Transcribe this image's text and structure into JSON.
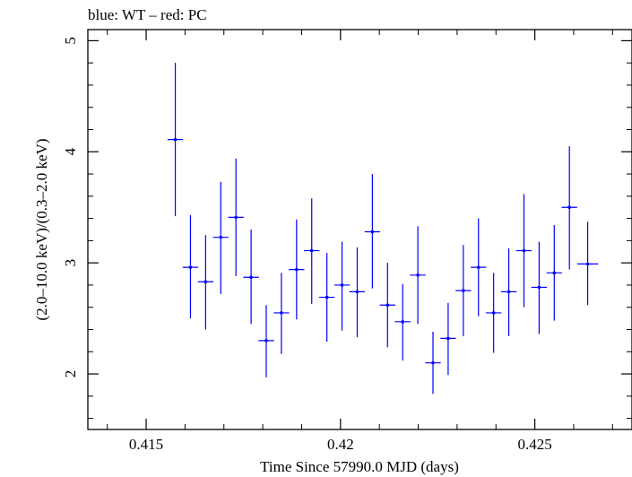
{
  "chart_data": {
    "type": "scatter",
    "title": "blue: WT – red: PC",
    "xlabel": "Time Since 57990.0 MJD (days)",
    "ylabel": "(2.0–10.0 keV)/(0.3–2.0 keV)",
    "xlim": [
      0.4135,
      0.4275
    ],
    "ylim": [
      1.5,
      5.1
    ],
    "x_ticks": [
      {
        "value": 0.415,
        "label": "0.415"
      },
      {
        "value": 0.42,
        "label": "0.42"
      },
      {
        "value": 0.425,
        "label": "0.425"
      }
    ],
    "y_ticks": [
      {
        "value": 2,
        "label": "2"
      },
      {
        "value": 3,
        "label": "3"
      },
      {
        "value": 4,
        "label": "4"
      },
      {
        "value": 5,
        "label": "5"
      }
    ],
    "grid": false,
    "series": [
      {
        "name": "WT",
        "color": "#0000ff",
        "points": [
          {
            "x": 0.41575,
            "xerr": 0.0002,
            "y": 4.11,
            "ylo": 3.42,
            "yhi": 4.8
          },
          {
            "x": 0.41614,
            "xerr": 0.0002,
            "y": 2.96,
            "ylo": 2.5,
            "yhi": 3.43
          },
          {
            "x": 0.41653,
            "xerr": 0.0002,
            "y": 2.83,
            "ylo": 2.4,
            "yhi": 3.25
          },
          {
            "x": 0.41692,
            "xerr": 0.0002,
            "y": 3.23,
            "ylo": 2.72,
            "yhi": 3.73
          },
          {
            "x": 0.41731,
            "xerr": 0.0002,
            "y": 3.41,
            "ylo": 2.88,
            "yhi": 3.94
          },
          {
            "x": 0.4177,
            "xerr": 0.0002,
            "y": 2.87,
            "ylo": 2.45,
            "yhi": 3.3
          },
          {
            "x": 0.41809,
            "xerr": 0.0002,
            "y": 2.3,
            "ylo": 1.97,
            "yhi": 2.62
          },
          {
            "x": 0.41848,
            "xerr": 0.0002,
            "y": 2.55,
            "ylo": 2.18,
            "yhi": 2.91
          },
          {
            "x": 0.41887,
            "xerr": 0.0002,
            "y": 2.94,
            "ylo": 2.49,
            "yhi": 3.39
          },
          {
            "x": 0.41926,
            "xerr": 0.0002,
            "y": 3.11,
            "ylo": 2.63,
            "yhi": 3.58
          },
          {
            "x": 0.41965,
            "xerr": 0.0002,
            "y": 2.69,
            "ylo": 2.29,
            "yhi": 3.09
          },
          {
            "x": 0.42004,
            "xerr": 0.0002,
            "y": 2.8,
            "ylo": 2.39,
            "yhi": 3.19
          },
          {
            "x": 0.42043,
            "xerr": 0.0002,
            "y": 2.74,
            "ylo": 2.33,
            "yhi": 3.14
          },
          {
            "x": 0.42082,
            "xerr": 0.0002,
            "y": 3.28,
            "ylo": 2.77,
            "yhi": 3.8
          },
          {
            "x": 0.42121,
            "xerr": 0.0002,
            "y": 2.62,
            "ylo": 2.24,
            "yhi": 3.0
          },
          {
            "x": 0.4216,
            "xerr": 0.0002,
            "y": 2.47,
            "ylo": 2.12,
            "yhi": 2.81
          },
          {
            "x": 0.42199,
            "xerr": 0.0002,
            "y": 2.89,
            "ylo": 2.45,
            "yhi": 3.33
          },
          {
            "x": 0.42238,
            "xerr": 0.0002,
            "y": 2.1,
            "ylo": 1.82,
            "yhi": 2.38
          },
          {
            "x": 0.42277,
            "xerr": 0.0002,
            "y": 2.32,
            "ylo": 1.99,
            "yhi": 2.64
          },
          {
            "x": 0.42316,
            "xerr": 0.0002,
            "y": 2.75,
            "ylo": 2.34,
            "yhi": 3.16
          },
          {
            "x": 0.42355,
            "xerr": 0.0002,
            "y": 2.96,
            "ylo": 2.52,
            "yhi": 3.4
          },
          {
            "x": 0.42394,
            "xerr": 0.0002,
            "y": 2.55,
            "ylo": 2.19,
            "yhi": 2.91
          },
          {
            "x": 0.42433,
            "xerr": 0.0002,
            "y": 2.74,
            "ylo": 2.34,
            "yhi": 3.13
          },
          {
            "x": 0.42472,
            "xerr": 0.0002,
            "y": 3.11,
            "ylo": 2.6,
            "yhi": 3.62
          },
          {
            "x": 0.42511,
            "xerr": 0.0002,
            "y": 2.78,
            "ylo": 2.36,
            "yhi": 3.19
          },
          {
            "x": 0.4255,
            "xerr": 0.0002,
            "y": 2.91,
            "ylo": 2.48,
            "yhi": 3.34
          },
          {
            "x": 0.42589,
            "xerr": 0.0002,
            "y": 3.5,
            "ylo": 2.94,
            "yhi": 4.05
          },
          {
            "x": 0.42636,
            "xerr": 0.00027,
            "y": 2.99,
            "ylo": 2.62,
            "yhi": 3.37
          }
        ]
      }
    ]
  }
}
